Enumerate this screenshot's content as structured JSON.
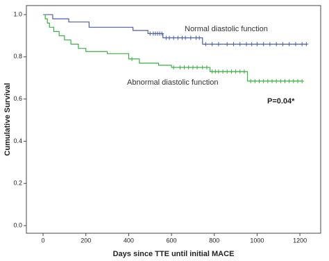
{
  "chart_data": {
    "type": "step",
    "xlabel": "Days since TTE until initial MACE",
    "ylabel": "Cumulative Survival",
    "xlim": [
      -78,
      1297
    ],
    "ylim": [
      -0.036,
      1.043
    ],
    "xticks": [
      0,
      200,
      400,
      600,
      800,
      1000,
      1200
    ],
    "yticks": [
      {
        "value": 0,
        "label": "0.0"
      },
      {
        "value": 0.2,
        "label": "0.2"
      },
      {
        "value": 0.4,
        "label": "0.4"
      },
      {
        "value": 0.6,
        "label": "0.6"
      },
      {
        "value": 0.8,
        "label": "0.8"
      },
      {
        "value": 1,
        "label": "1.0"
      }
    ],
    "series": [
      {
        "name": "Normal diastolic function",
        "color": "#4a5fa8",
        "x": [
          0,
          45,
          120,
          215,
          420,
          490,
          560,
          745,
          1230
        ],
        "values": [
          1.0,
          0.98,
          0.965,
          0.94,
          0.925,
          0.91,
          0.89,
          0.86,
          0.86
        ],
        "censored_x": [
          500,
          515,
          525,
          535,
          545,
          555,
          575,
          590,
          610,
          630,
          650,
          665,
          690,
          715,
          730,
          760,
          790,
          820,
          860,
          890,
          920,
          950,
          975,
          1000,
          1030,
          1060,
          1090,
          1120,
          1150,
          1180,
          1210,
          1230
        ],
        "censored_y": [
          0.91,
          0.91,
          0.91,
          0.91,
          0.91,
          0.91,
          0.89,
          0.89,
          0.89,
          0.89,
          0.89,
          0.89,
          0.89,
          0.89,
          0.89,
          0.86,
          0.86,
          0.86,
          0.86,
          0.86,
          0.86,
          0.86,
          0.86,
          0.86,
          0.86,
          0.86,
          0.86,
          0.86,
          0.86,
          0.86,
          0.86,
          0.86
        ]
      },
      {
        "name": "Abnormal diastolic function",
        "color": "#3cb044",
        "x": [
          0,
          10,
          20,
          30,
          50,
          75,
          100,
          130,
          165,
          200,
          300,
          400,
          450,
          540,
          600,
          780,
          955,
          1210
        ],
        "values": [
          1.0,
          0.98,
          0.96,
          0.94,
          0.92,
          0.9,
          0.88,
          0.86,
          0.84,
          0.825,
          0.815,
          0.79,
          0.77,
          0.76,
          0.75,
          0.73,
          0.685,
          0.685
        ],
        "censored_x": [
          415,
          610,
          640,
          660,
          680,
          700,
          720,
          745,
          765,
          790,
          805,
          820,
          840,
          860,
          880,
          900,
          920,
          940,
          970,
          990,
          1010,
          1030,
          1050,
          1070,
          1090,
          1110,
          1130,
          1150,
          1170,
          1190,
          1210
        ],
        "censored_y": [
          0.79,
          0.75,
          0.75,
          0.75,
          0.75,
          0.75,
          0.75,
          0.75,
          0.75,
          0.73,
          0.73,
          0.73,
          0.73,
          0.73,
          0.73,
          0.73,
          0.73,
          0.73,
          0.685,
          0.685,
          0.685,
          0.685,
          0.685,
          0.685,
          0.685,
          0.685,
          0.685,
          0.685,
          0.685,
          0.685,
          0.685
        ]
      }
    ],
    "annotations": [
      {
        "text": "Normal diastolic function"
      },
      {
        "text": "Abnormal diastolic function"
      },
      {
        "text": "P=0.04*"
      }
    ]
  }
}
